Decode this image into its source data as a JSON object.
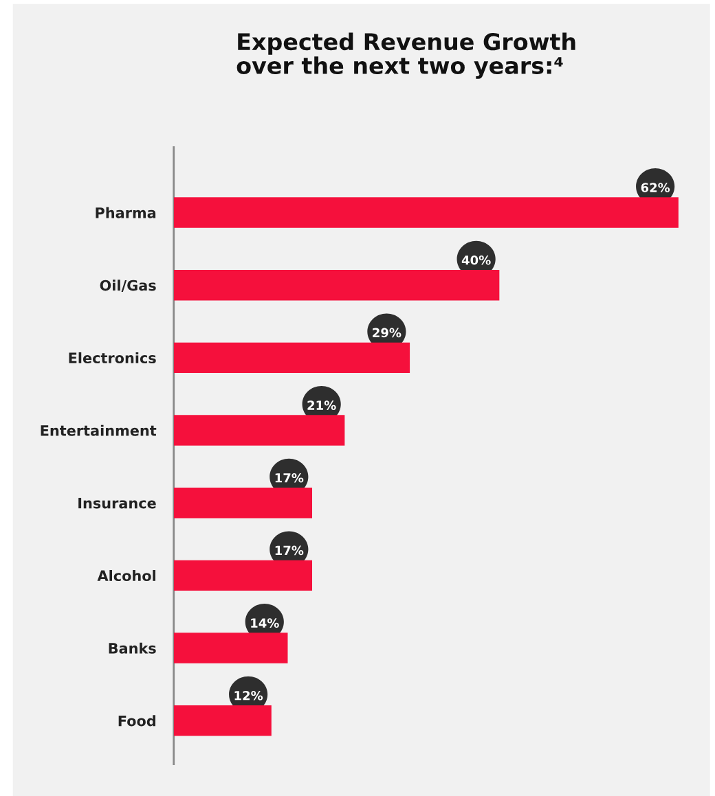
{
  "chart_data": {
    "type": "bar",
    "orientation": "horizontal",
    "title": "Expected Revenue Growth\nover the next two years:⁴",
    "categories": [
      "Pharma",
      "Oil/Gas",
      "Electronics",
      "Entertainment",
      "Insurance",
      "Alcohol",
      "Banks",
      "Food"
    ],
    "values": [
      62,
      40,
      29,
      21,
      17,
      17,
      14,
      12
    ],
    "value_labels": [
      "62%",
      "40%",
      "29%",
      "21%",
      "17%",
      "17%",
      "14%",
      "12%"
    ],
    "color": "#f5103c",
    "grid": false,
    "legend": false
  }
}
